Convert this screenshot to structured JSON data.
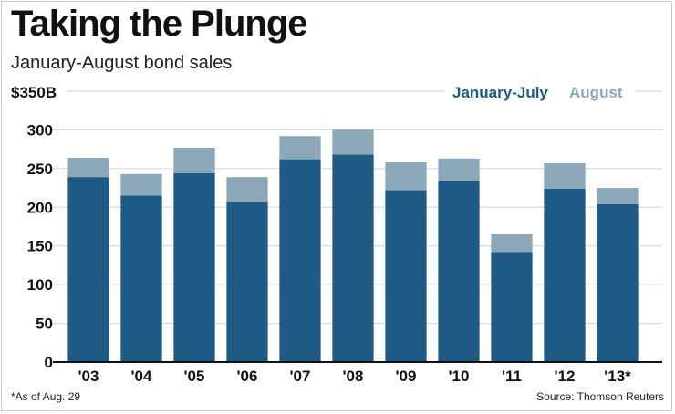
{
  "header": {
    "title": "Taking the Plunge",
    "subtitle": "January-August bond sales"
  },
  "footer": {
    "footnote": "*As of Aug. 29",
    "source": "Source: Thomson Reuters"
  },
  "colors": {
    "jan_jul": "#1f5a85",
    "august": "#8ba7b8",
    "grid": "#d4d4d4",
    "axis": "#111111"
  },
  "chart_data": {
    "type": "bar",
    "stacked": true,
    "title": "Taking the Plunge",
    "subtitle": "January-August bond sales",
    "categories": [
      "'03",
      "'04",
      "'05",
      "'06",
      "'07",
      "'08",
      "'09",
      "'10",
      "'11",
      "'12",
      "'13*"
    ],
    "series": [
      {
        "name": "January-July",
        "values": [
          239,
          215,
          244,
          207,
          262,
          268,
          222,
          234,
          142,
          224,
          204
        ]
      },
      {
        "name": "August",
        "values": [
          25,
          28,
          33,
          32,
          30,
          32,
          36,
          29,
          23,
          33,
          21
        ]
      }
    ],
    "y_ticks": [
      0,
      50,
      100,
      150,
      200,
      250,
      300
    ],
    "y_top_label": "$350B",
    "ylim": [
      0,
      350
    ],
    "grid": true,
    "legend": {
      "position": "top-right",
      "items": [
        "January-July",
        "August"
      ]
    },
    "xlabel": "",
    "ylabel": ""
  }
}
